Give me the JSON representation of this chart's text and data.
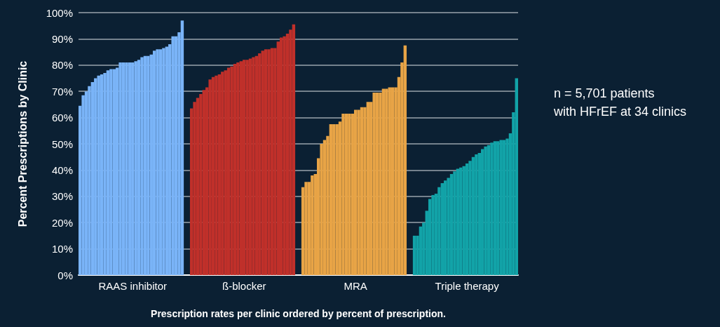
{
  "chart_data": {
    "type": "bar",
    "xlabel": "Prescription rates per clinic ordered by percent of prescription.",
    "ylabel": "Percent Prescriptions by Clinic",
    "annotations": [
      "n = 5,701 patients\nwith HFrEF at 34 clinics"
    ],
    "categories": [
      null,
      null,
      null,
      null,
      null,
      null,
      null,
      null,
      null,
      null,
      null,
      null,
      null,
      null,
      null,
      null,
      null,
      "RAAS inhibitor",
      null,
      null,
      null,
      null,
      null,
      null,
      null,
      null,
      null,
      null,
      null,
      null,
      null,
      null,
      null,
      null,
      null,
      null,
      null,
      null,
      null,
      null,
      null,
      null,
      null,
      null,
      null,
      null,
      null,
      null,
      null,
      null,
      null,
      null,
      null,
      "ß-blocker",
      null,
      null,
      null,
      null,
      null,
      null,
      null,
      null,
      null,
      null,
      null,
      null,
      null,
      null,
      null,
      null,
      null,
      null,
      null,
      null,
      null,
      null,
      null,
      null,
      null,
      null,
      null,
      null,
      null,
      null,
      null,
      null,
      null,
      null,
      null,
      "MRA",
      null,
      null,
      null,
      null,
      null,
      null,
      null,
      null,
      null,
      null,
      null,
      null,
      null,
      null,
      null,
      null,
      null,
      null,
      null,
      null,
      null,
      null,
      null,
      null,
      null,
      null,
      null,
      null,
      null,
      null,
      null,
      null,
      null,
      null,
      null,
      "Triple therapy",
      null,
      null,
      null,
      null,
      null,
      null,
      null,
      null,
      null,
      null,
      null,
      null,
      null,
      null,
      null,
      null
    ],
    "series": [
      {
        "color": "#7ab4f8",
        "values": [
          64.5,
          68.5,
          70,
          72,
          73.5,
          75,
          76,
          76.5,
          77,
          78,
          78.5,
          78.5,
          79,
          81,
          81,
          81,
          81,
          81,
          81.5,
          82,
          83,
          83.5,
          83.5,
          84,
          85.5,
          86,
          86,
          86.5,
          87,
          88,
          91,
          91,
          92.5,
          97,
          null,
          null,
          null,
          null,
          null,
          null,
          null,
          null,
          null,
          null,
          null,
          null,
          null,
          null,
          null,
          null,
          null,
          null,
          null,
          null,
          null,
          null,
          null,
          null,
          null,
          null,
          null,
          null,
          null,
          null,
          null,
          null,
          null,
          null,
          null,
          null,
          null,
          null,
          null,
          null,
          null,
          null,
          null,
          null,
          null,
          null,
          null,
          null,
          null,
          null,
          null,
          null,
          null,
          null,
          null,
          null,
          null,
          null,
          null,
          null,
          null,
          null,
          null,
          null,
          null,
          null,
          null,
          null,
          null,
          null,
          null,
          null,
          null,
          null,
          null,
          null,
          null,
          null,
          null,
          null,
          null,
          null,
          null,
          null,
          null,
          null,
          null,
          null,
          null,
          null,
          null,
          null,
          null,
          null,
          null,
          null,
          null,
          null,
          null,
          null,
          null,
          null,
          null,
          null,
          null,
          null,
          null,
          null
        ]
      },
      {
        "color": "#c0302a",
        "values": [
          null,
          null,
          null,
          null,
          null,
          null,
          null,
          null,
          null,
          null,
          null,
          null,
          null,
          null,
          null,
          null,
          null,
          null,
          null,
          null,
          null,
          null,
          null,
          null,
          null,
          null,
          null,
          null,
          null,
          null,
          null,
          null,
          null,
          null,
          null,
          null,
          63.5,
          66,
          67.5,
          69,
          70.5,
          71.5,
          74.5,
          75.5,
          76,
          76.5,
          77.5,
          78,
          79,
          79.5,
          80.5,
          81,
          81.5,
          82,
          82,
          82.5,
          83,
          83.5,
          84.5,
          85.5,
          86,
          86,
          86.5,
          86.5,
          89,
          90.5,
          91,
          92,
          93.5,
          95.5,
          null,
          null,
          null,
          null,
          null,
          null,
          null,
          null,
          null,
          null,
          null,
          null,
          null,
          null,
          null,
          null,
          null,
          null,
          null,
          null,
          null,
          null,
          null,
          null,
          null,
          null,
          null,
          null,
          null,
          null,
          null,
          null,
          null,
          null,
          null,
          null,
          null,
          null,
          null,
          null,
          null,
          null,
          null,
          null,
          null,
          null,
          null,
          null,
          null,
          null,
          null,
          null,
          null,
          null,
          null,
          null,
          null,
          null,
          null,
          null,
          null,
          null,
          null,
          null,
          null,
          null,
          null,
          null,
          null,
          null,
          null,
          null
        ]
      },
      {
        "color": "#e8a446",
        "values": [
          null,
          null,
          null,
          null,
          null,
          null,
          null,
          null,
          null,
          null,
          null,
          null,
          null,
          null,
          null,
          null,
          null,
          null,
          null,
          null,
          null,
          null,
          null,
          null,
          null,
          null,
          null,
          null,
          null,
          null,
          null,
          null,
          null,
          null,
          null,
          null,
          null,
          null,
          null,
          null,
          null,
          null,
          null,
          null,
          null,
          null,
          null,
          null,
          null,
          null,
          null,
          null,
          null,
          null,
          null,
          null,
          null,
          null,
          null,
          null,
          null,
          null,
          null,
          null,
          null,
          null,
          null,
          null,
          null,
          null,
          null,
          null,
          33.5,
          35.5,
          35.5,
          38,
          38.5,
          44.5,
          50,
          51.5,
          53,
          57.5,
          57.5,
          57.5,
          58.5,
          61.5,
          61.5,
          61.5,
          61.5,
          63,
          63,
          64,
          64,
          66,
          66,
          69.5,
          69.5,
          69.5,
          71,
          71,
          71.5,
          71.5,
          71.5,
          75.5,
          81,
          87.5,
          null,
          null,
          null,
          null,
          null,
          null,
          null,
          null,
          null,
          null,
          null,
          null,
          null,
          null,
          null,
          null,
          null,
          null,
          null,
          null,
          null,
          null,
          null,
          null,
          null,
          null,
          null,
          null,
          null,
          null,
          null,
          null,
          null,
          null,
          null,
          null
        ]
      },
      {
        "color": "#12a3a8",
        "values": [
          null,
          null,
          null,
          null,
          null,
          null,
          null,
          null,
          null,
          null,
          null,
          null,
          null,
          null,
          null,
          null,
          null,
          null,
          null,
          null,
          null,
          null,
          null,
          null,
          null,
          null,
          null,
          null,
          null,
          null,
          null,
          null,
          null,
          null,
          null,
          null,
          null,
          null,
          null,
          null,
          null,
          null,
          null,
          null,
          null,
          null,
          null,
          null,
          null,
          null,
          null,
          null,
          null,
          null,
          null,
          null,
          null,
          null,
          null,
          null,
          null,
          null,
          null,
          null,
          null,
          null,
          null,
          null,
          null,
          null,
          null,
          null,
          null,
          null,
          null,
          null,
          null,
          null,
          null,
          null,
          null,
          null,
          null,
          null,
          null,
          null,
          null,
          null,
          null,
          null,
          null,
          null,
          null,
          null,
          null,
          null,
          null,
          null,
          null,
          null,
          null,
          null,
          null,
          null,
          null,
          null,
          null,
          null,
          15,
          15,
          18.5,
          20,
          24.5,
          29,
          30.5,
          31,
          33.5,
          35,
          36,
          37,
          38.5,
          39.5,
          40.5,
          41,
          41.5,
          42.5,
          43.5,
          45,
          46,
          46.5,
          48,
          49,
          49.5,
          50.5,
          51,
          51,
          51.5,
          51.5,
          52,
          54,
          62,
          75
        ]
      }
    ],
    "ylim": [
      0,
      100
    ],
    "yticks": [
      {
        "value": 0,
        "label": "0%"
      },
      {
        "value": 10,
        "label": "10%"
      },
      {
        "value": 20,
        "label": "20%"
      },
      {
        "value": 30,
        "label": "30%"
      },
      {
        "value": 40,
        "label": "40%"
      },
      {
        "value": 50,
        "label": "50%"
      },
      {
        "value": 60,
        "label": "60%"
      },
      {
        "value": 70,
        "label": "70%"
      },
      {
        "value": 80,
        "label": "80%"
      },
      {
        "value": 90,
        "label": "90%"
      },
      {
        "value": 100,
        "label": "100%"
      }
    ],
    "grid": "y"
  }
}
